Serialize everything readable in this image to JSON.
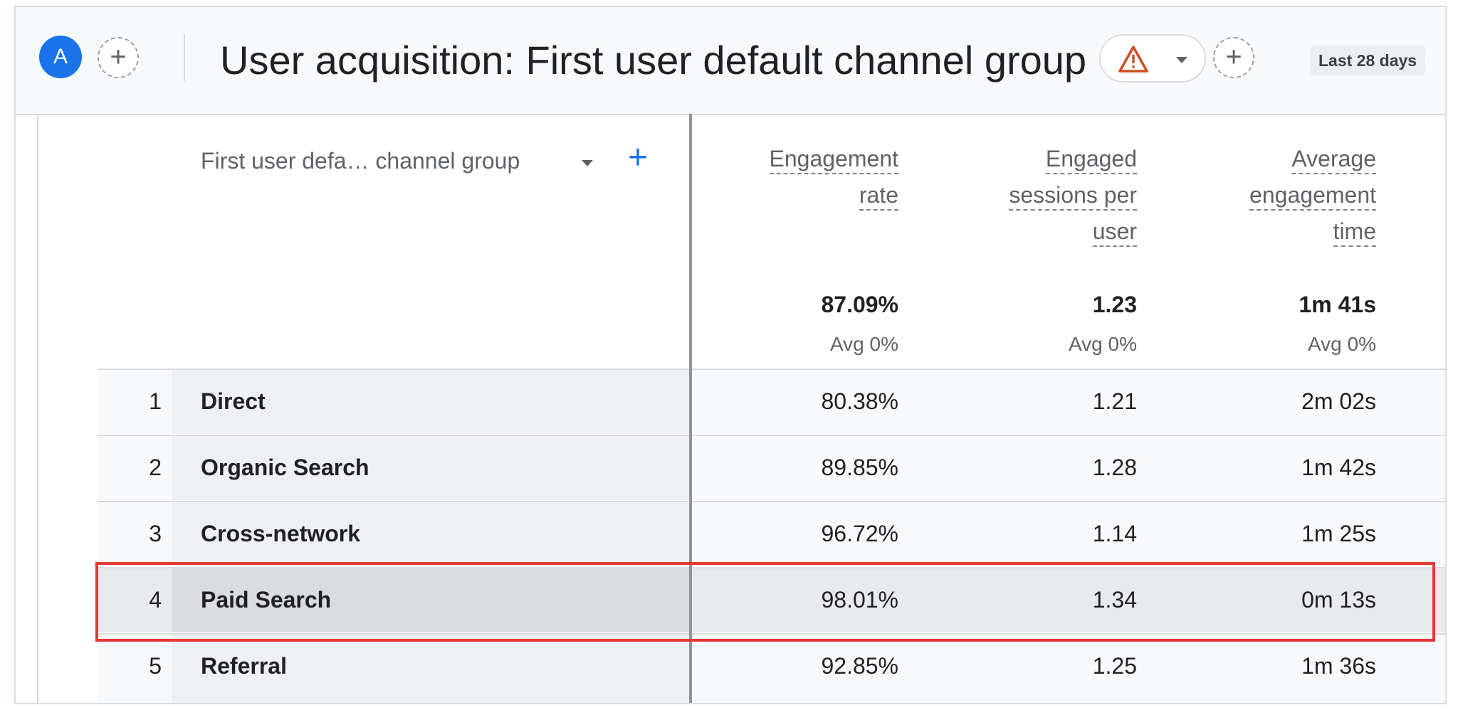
{
  "header": {
    "avatar_letter": "A",
    "title": "User acquisition: First user default channel group",
    "warning_icon": "warning-triangle-icon",
    "date_range": "Last 28 days"
  },
  "table": {
    "dimension_header": "First user defa… channel group",
    "metrics": [
      {
        "label_lines": [
          "Engagement",
          "rate"
        ],
        "total": "87.09%",
        "avg": "Avg 0%"
      },
      {
        "label_lines": [
          "Engaged",
          "sessions per",
          "user"
        ],
        "total": "1.23",
        "avg": "Avg 0%"
      },
      {
        "label_lines": [
          "Average",
          "engagement",
          "time"
        ],
        "total": "1m 41s",
        "avg": "Avg 0%"
      }
    ],
    "rows": [
      {
        "index": "1",
        "channel": "Direct",
        "engagement_rate": "80.38%",
        "sessions_per_user": "1.21",
        "avg_time": "2m 02s"
      },
      {
        "index": "2",
        "channel": "Organic Search",
        "engagement_rate": "89.85%",
        "sessions_per_user": "1.28",
        "avg_time": "1m 42s"
      },
      {
        "index": "3",
        "channel": "Cross-network",
        "engagement_rate": "96.72%",
        "sessions_per_user": "1.14",
        "avg_time": "1m 25s"
      },
      {
        "index": "4",
        "channel": "Paid Search",
        "engagement_rate": "98.01%",
        "sessions_per_user": "1.34",
        "avg_time": "0m 13s"
      },
      {
        "index": "5",
        "channel": "Referral",
        "engagement_rate": "92.85%",
        "sessions_per_user": "1.25",
        "avg_time": "1m 36s"
      }
    ],
    "highlighted_row": "4"
  },
  "colors": {
    "accent": "#1a73e8",
    "highlight_border": "#e53935",
    "warning": "#d14d1f"
  }
}
